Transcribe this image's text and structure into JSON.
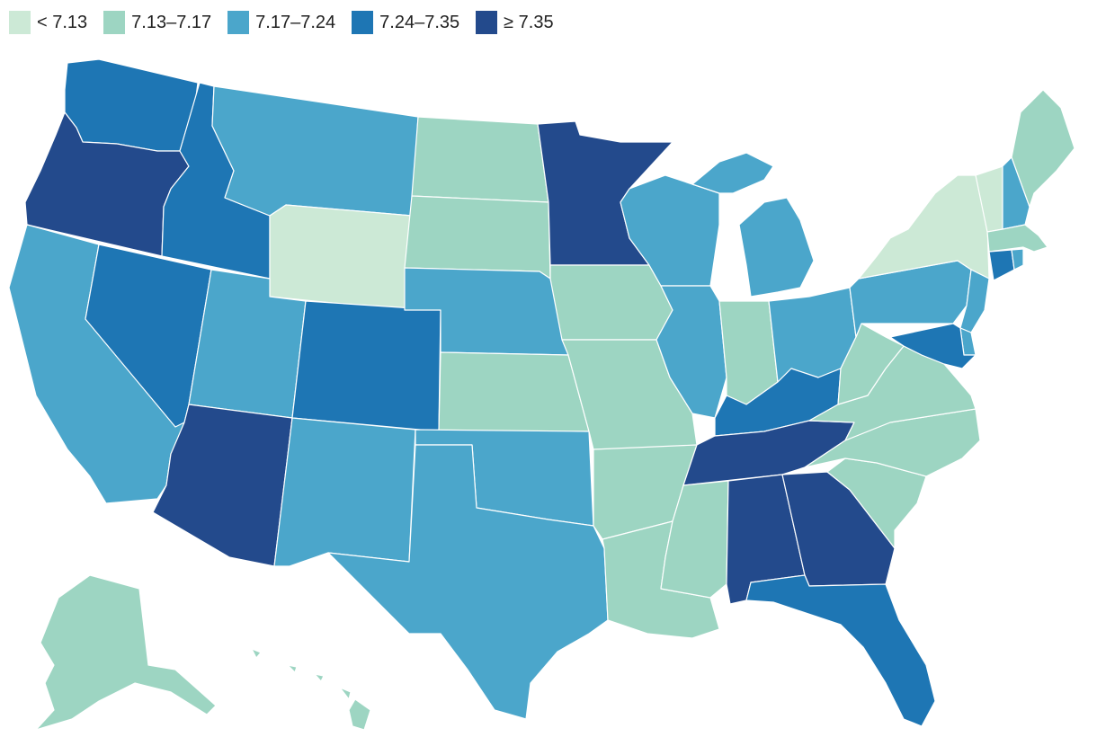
{
  "legend": [
    {
      "label": "< 7.13",
      "color": "#cce9d6"
    },
    {
      "label": "7.13–7.17",
      "color": "#9dd5c2"
    },
    {
      "label": "7.17–7.24",
      "color": "#4ba6cb"
    },
    {
      "label": "7.24–7.35",
      "color": "#1e76b4"
    },
    {
      "label": "≥ 7.35",
      "color": "#234a8c"
    }
  ],
  "states": {
    "WA": 3,
    "OR": 4,
    "CA": 2,
    "NV": 3,
    "ID": 3,
    "MT": 2,
    "WY": 0,
    "UT": 2,
    "AZ": 4,
    "CO": 3,
    "NM": 2,
    "ND": 1,
    "SD": 1,
    "NE": 2,
    "KS": 1,
    "OK": 2,
    "TX": 2,
    "MN": 4,
    "IA": 1,
    "MO": 1,
    "AR": 1,
    "LA": 1,
    "WI": 2,
    "IL": 2,
    "MI": 2,
    "IN": 1,
    "OH": 2,
    "KY": 3,
    "TN": 4,
    "MS": 1,
    "AL": 4,
    "GA": 4,
    "FL": 3,
    "SC": 1,
    "NC": 1,
    "VA": 1,
    "WV": 1,
    "PA": 2,
    "NY": 0,
    "VT": 0,
    "NH": 2,
    "ME": 1,
    "MA": 1,
    "CT": 3,
    "RI": 2,
    "NJ": 2,
    "DE": 2,
    "MD": 3,
    "AK": 1,
    "HI": 1
  }
}
